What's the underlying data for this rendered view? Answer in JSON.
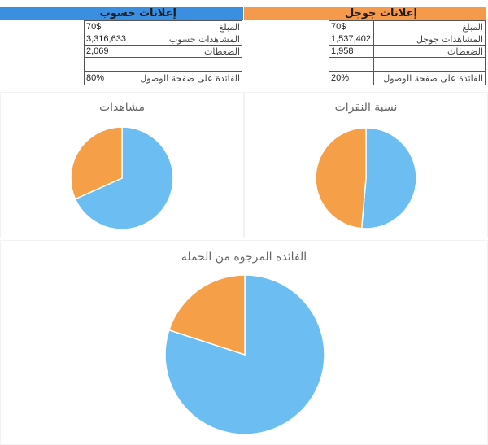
{
  "colors": {
    "hasoub_header": "#3a8fe0",
    "google_header": "#f59a4a",
    "pie_blue": "#6bbdf2",
    "pie_orange": "#f5a049"
  },
  "hasoub": {
    "title": "إعلانات حسوب",
    "rows": [
      {
        "label": "المبلغ",
        "value": "70$"
      },
      {
        "label": "المشاهدات حسوب",
        "value": "3,316,633"
      },
      {
        "label": "الضغطات",
        "value": "2,069"
      },
      {
        "label": "",
        "value": ""
      },
      {
        "label": "الفائدة على صفحة الوصول",
        "value": "80%"
      }
    ]
  },
  "google": {
    "title": "إعلانات جوجل",
    "rows": [
      {
        "label": "المبلغ",
        "value": "70$"
      },
      {
        "label": "المشاهدات جوجل",
        "value": "1,537,402"
      },
      {
        "label": "الضغطات",
        "value": "1,958"
      },
      {
        "label": "",
        "value": ""
      },
      {
        "label": "الفائدة على صفحة الوصول",
        "value": "20%"
      }
    ]
  },
  "chart_data": [
    {
      "type": "pie",
      "title": "مشاهدات",
      "categories": [
        "إعلانات حسوب",
        "إعلانات جوجل"
      ],
      "values": [
        3316633,
        1537402
      ],
      "percent": [
        68.3,
        31.7
      ],
      "colors": [
        "#6bbdf2",
        "#f5a049"
      ],
      "legend": "none"
    },
    {
      "type": "pie",
      "title": "نسبة النقرات",
      "categories": [
        "إعلانات حسوب",
        "إعلانات جوجل"
      ],
      "values": [
        2069,
        1958
      ],
      "percent": [
        51.4,
        48.6
      ],
      "colors": [
        "#6bbdf2",
        "#f5a049"
      ],
      "legend": "none"
    },
    {
      "type": "pie",
      "title": "الفائدة المرجوة من الحملة",
      "categories": [
        "إعلانات حسوب",
        "إعلانات جوجل"
      ],
      "values": [
        80,
        20
      ],
      "percent": [
        80,
        20
      ],
      "colors": [
        "#6bbdf2",
        "#f5a049"
      ],
      "legend": "none"
    }
  ]
}
